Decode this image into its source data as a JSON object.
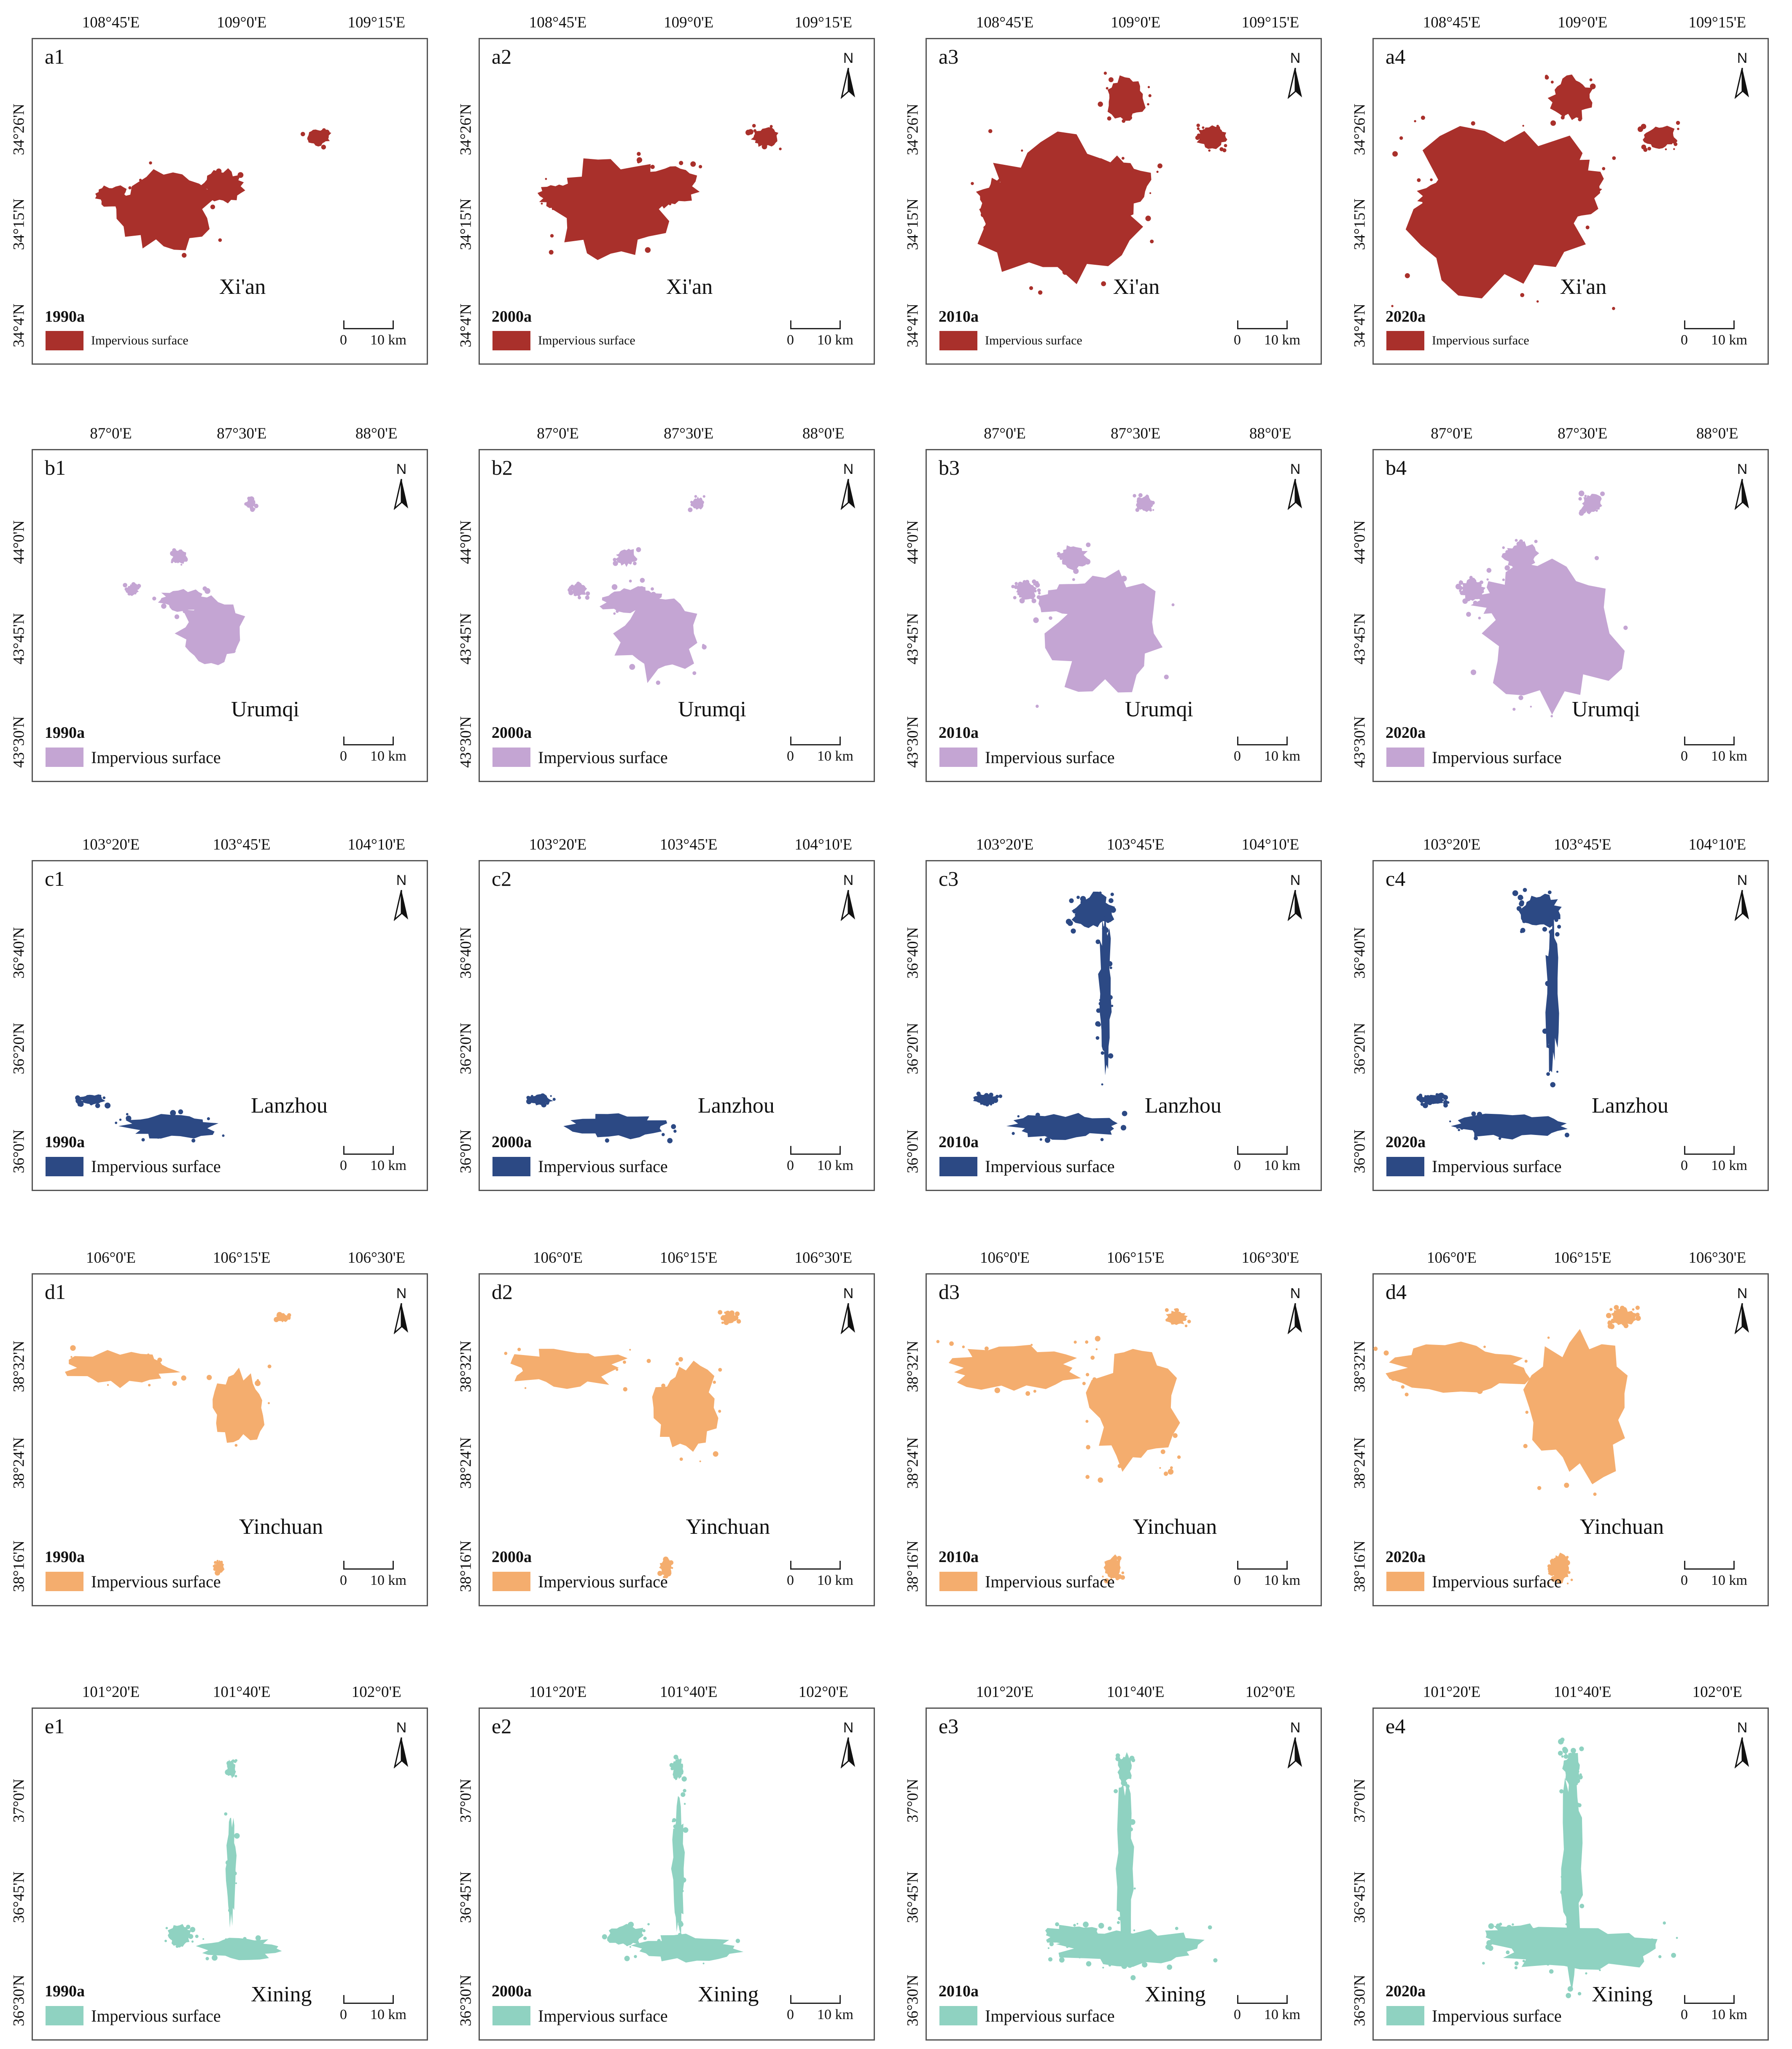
{
  "legend_label": "Impervious surface",
  "scale_start": "0",
  "scale_end": "10 km",
  "north_label": "N",
  "rows": [
    {
      "city": "Xi'an",
      "color": "#a9302b",
      "lon_labels": [
        "108°45'E",
        "109°0'E",
        "109°15'E"
      ],
      "lat_labels": [
        "34°26'N",
        "34°15'N",
        "34°4'N"
      ],
      "panels": [
        {
          "label": "a1",
          "year": "1990a"
        },
        {
          "label": "a2",
          "year": "2000a"
        },
        {
          "label": "a3",
          "year": "2010a"
        },
        {
          "label": "a4",
          "year": "2020a"
        }
      ]
    },
    {
      "city": "Urumqi",
      "color": "#c4a5d3",
      "lon_labels": [
        "87°0'E",
        "87°30'E",
        "88°0'E"
      ],
      "lat_labels": [
        "44°0'N",
        "43°45'N",
        "43°30'N"
      ],
      "panels": [
        {
          "label": "b1",
          "year": "1990a"
        },
        {
          "label": "b2",
          "year": "2000a"
        },
        {
          "label": "b3",
          "year": "2010a"
        },
        {
          "label": "b4",
          "year": "2020a"
        }
      ]
    },
    {
      "city": "Lanzhou",
      "color": "#2c4984",
      "lon_labels": [
        "103°20'E",
        "103°45'E",
        "104°10'E"
      ],
      "lat_labels": [
        "36°40'N",
        "36°20'N",
        "36°0'N"
      ],
      "panels": [
        {
          "label": "c1",
          "year": "1990a"
        },
        {
          "label": "c2",
          "year": "2000a"
        },
        {
          "label": "c3",
          "year": "2010a"
        },
        {
          "label": "c4",
          "year": "2020a"
        }
      ]
    },
    {
      "city": "Yinchuan",
      "color": "#f4ad6e",
      "lon_labels": [
        "106°0'E",
        "106°15'E",
        "106°30'E"
      ],
      "lat_labels": [
        "38°32'N",
        "38°24'N",
        "38°16'N"
      ],
      "panels": [
        {
          "label": "d1",
          "year": "1990a"
        },
        {
          "label": "d2",
          "year": "2000a"
        },
        {
          "label": "d3",
          "year": "2010a"
        },
        {
          "label": "d4",
          "year": "2020a"
        }
      ]
    },
    {
      "city": "Xining",
      "color": "#8fd2c1",
      "lon_labels": [
        "101°20'E",
        "101°40'E",
        "102°0'E"
      ],
      "lat_labels": [
        "37°0'N",
        "36°45'N",
        "36°30'N"
      ],
      "panels": [
        {
          "label": "e1",
          "year": "1990a"
        },
        {
          "label": "e2",
          "year": "2000a"
        },
        {
          "label": "e3",
          "year": "2010a"
        },
        {
          "label": "e4",
          "year": "2020a"
        }
      ]
    }
  ]
}
